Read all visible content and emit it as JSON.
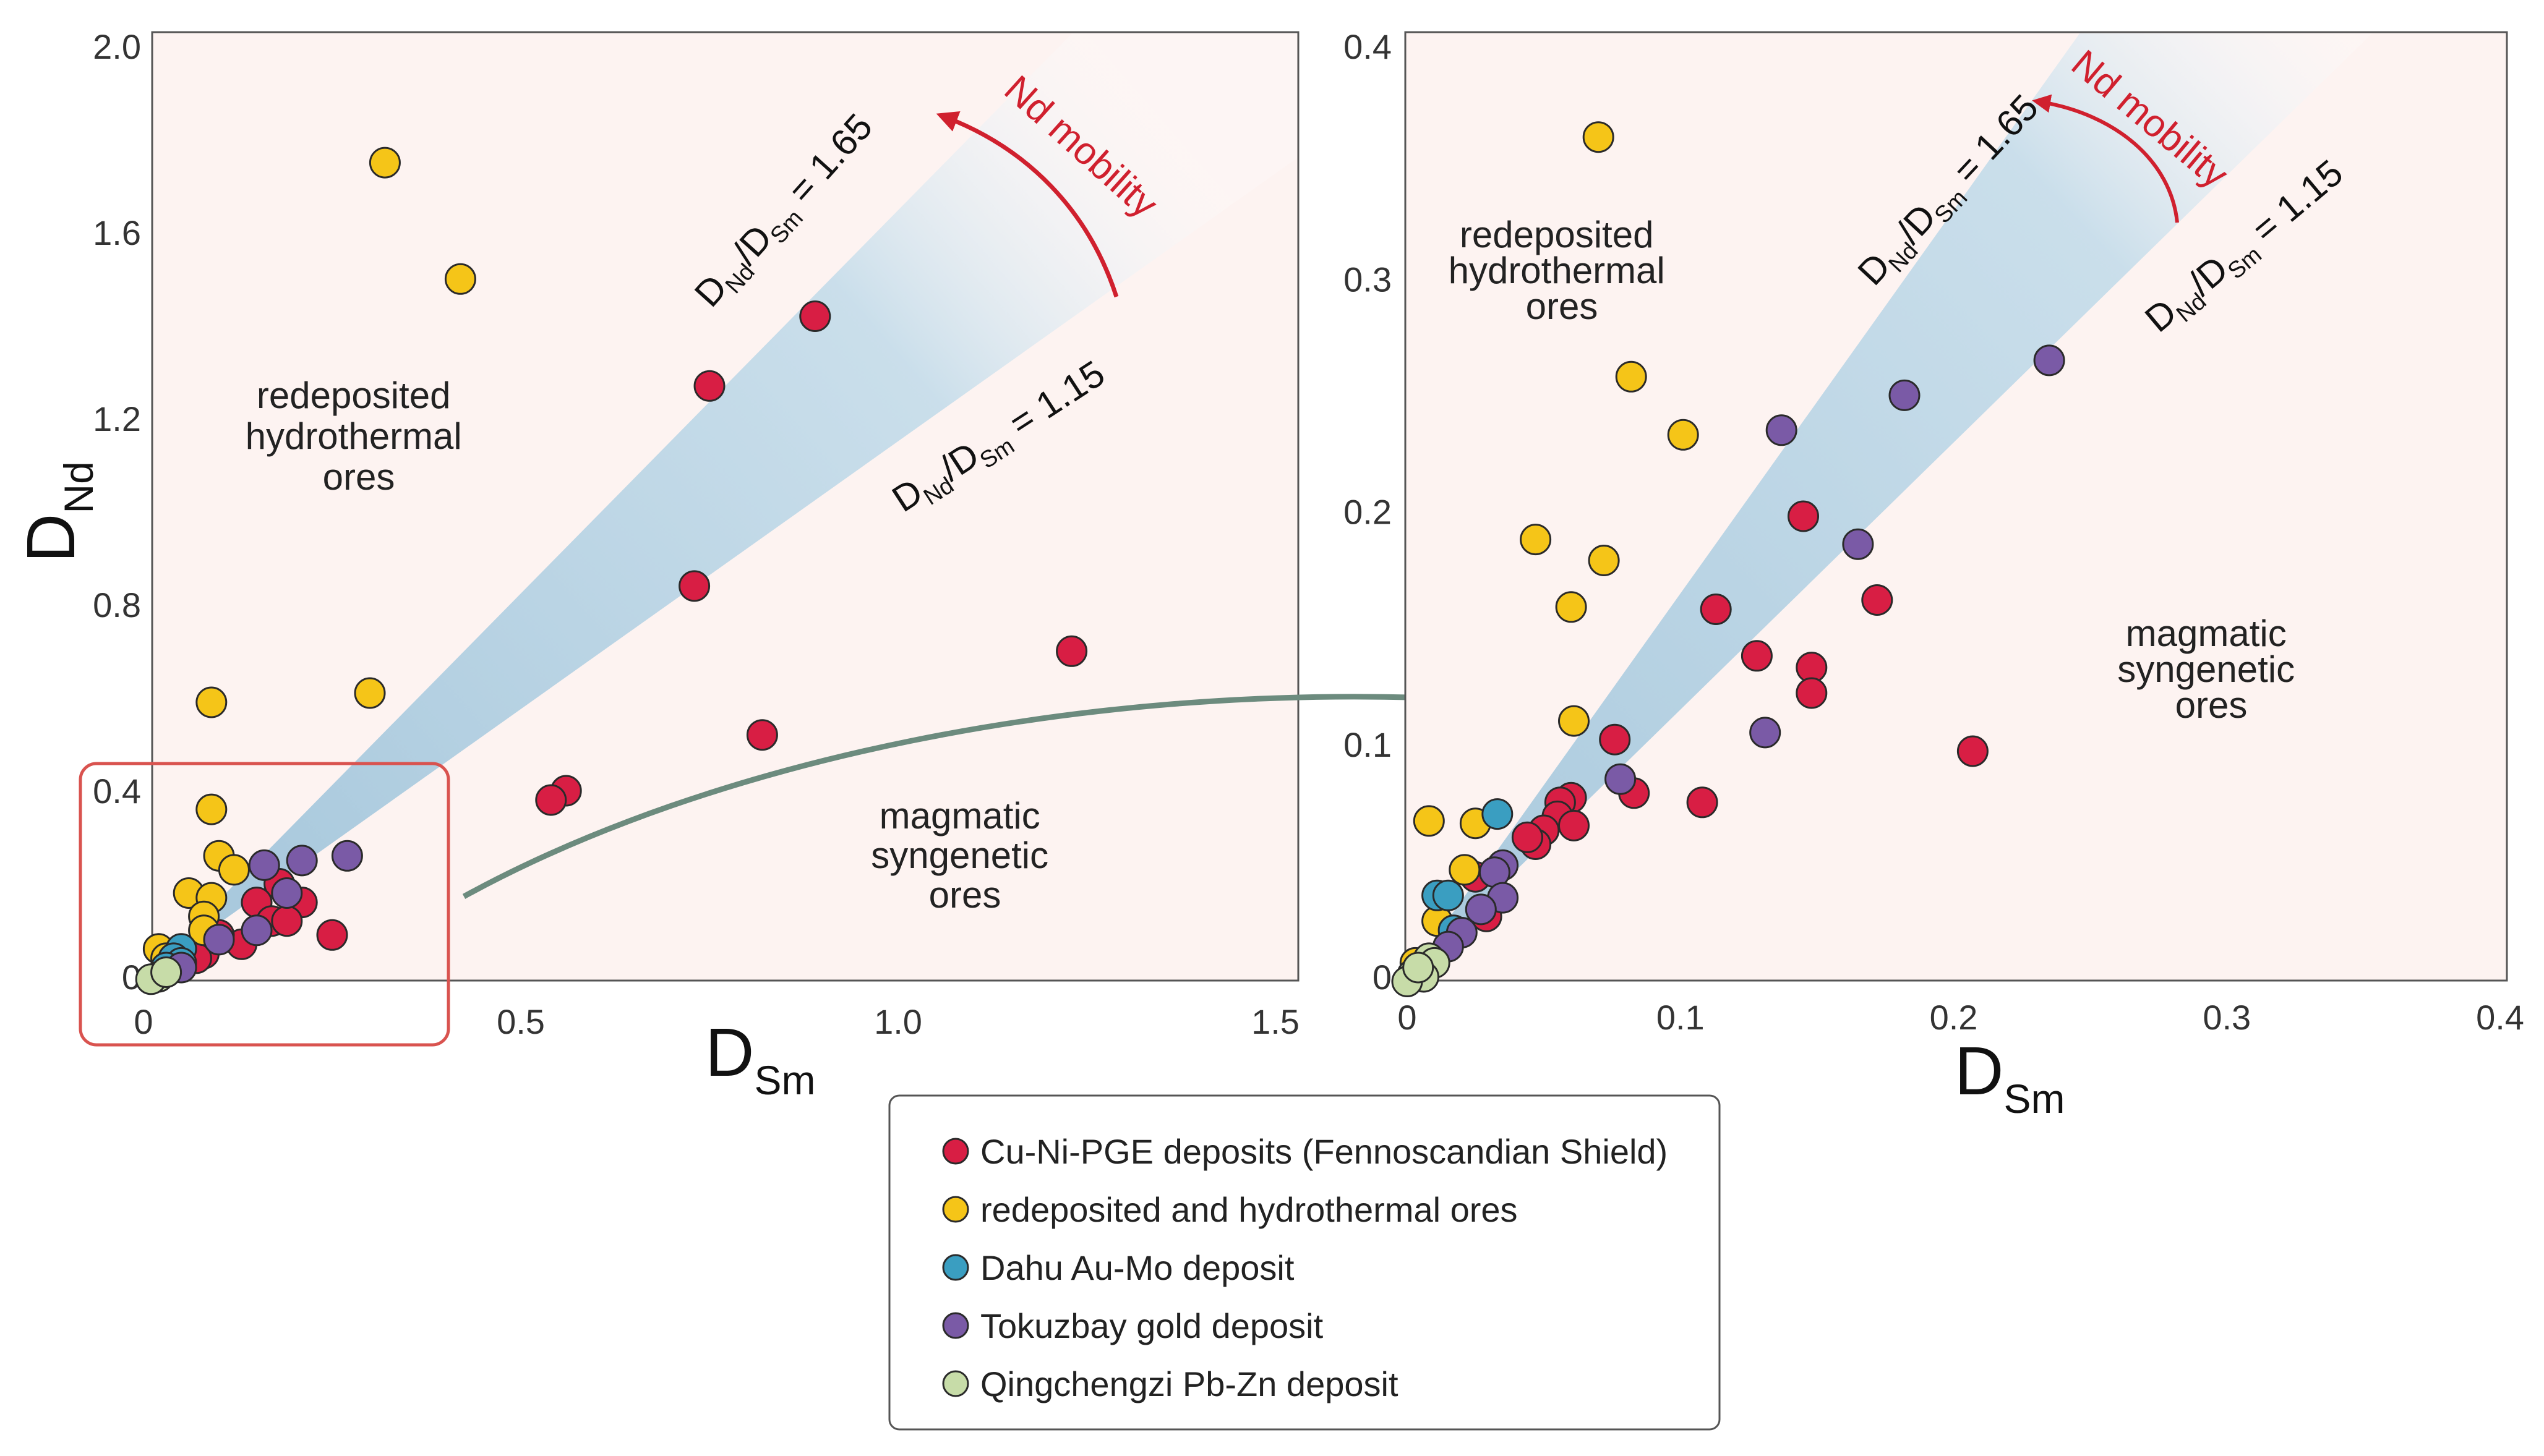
{
  "colors": {
    "Cu-Ni-PGE": "#d81e44",
    "redeposited": "#f5c518",
    "Dahu": "#3a9ec1",
    "Tokuzbay": "#7a5aa6",
    "Qingchengzi": "#c7dca8",
    "plot_bg": "#fdf3f1",
    "band": "#b9d5e6",
    "zoom_box": "#d9534f",
    "arrow": "#6c8b7e",
    "mobility": "#d0202e"
  },
  "shared": {
    "xlabel_main": "D",
    "xlabel_sub": "Sm",
    "ylabel_main": "D",
    "ylabel_sub": "Nd",
    "band_upper_label": [
      "D",
      "Nd",
      "/D",
      "Sm",
      " = 1.65"
    ],
    "band_lower_label": [
      "D",
      "Nd",
      "/D",
      "Sm",
      " = 1.15"
    ],
    "mobility_label": "Nd mobility",
    "region_hydro": [
      "redeposited",
      "hydrothermal",
      "ores"
    ],
    "region_magmatic": [
      "magmatic",
      "syngenetic",
      "ores"
    ]
  },
  "chart_data": [
    {
      "type": "scatter",
      "panel": "left",
      "xlabel": "DSm",
      "ylabel": "DNd",
      "xlim": [
        0,
        1.5
      ],
      "ylim": [
        0,
        2.0
      ],
      "xticks": [
        0,
        0.5,
        1.0,
        1.5
      ],
      "xtick_labels": [
        "0",
        "0.5",
        "1.0",
        "1.5"
      ],
      "yticks": [
        0,
        0.4,
        0.8,
        1.2,
        1.6,
        2.0
      ],
      "ytick_labels": [
        "0",
        "0.4",
        "0.8",
        "1.2",
        "1.6",
        "2.0"
      ],
      "band_ratios": [
        1.15,
        1.65
      ],
      "series": [
        {
          "name": "Cu-Ni-PGE deposits (Fennoscandian Shield)",
          "key": "Cu-Ni-PGE",
          "points": [
            [
              0.89,
              1.42
            ],
            [
              0.75,
              1.27
            ],
            [
              0.73,
              0.84
            ],
            [
              1.23,
              0.7
            ],
            [
              0.82,
              0.52
            ],
            [
              0.56,
              0.4
            ],
            [
              0.54,
              0.38
            ],
            [
              0.25,
              0.09
            ],
            [
              0.21,
              0.16
            ],
            [
              0.18,
              0.2
            ],
            [
              0.15,
              0.16
            ],
            [
              0.17,
              0.12
            ],
            [
              0.19,
              0.12
            ],
            [
              0.13,
              0.07
            ],
            [
              0.1,
              0.09
            ],
            [
              0.08,
              0.05
            ],
            [
              0.07,
              0.04
            ]
          ]
        },
        {
          "name": "redeposited and hydrothermal ores",
          "key": "redeposited",
          "points": [
            [
              0.32,
              1.75
            ],
            [
              0.42,
              1.5
            ],
            [
              0.3,
              0.61
            ],
            [
              0.09,
              0.59
            ],
            [
              0.09,
              0.36
            ],
            [
              0.1,
              0.26
            ],
            [
              0.12,
              0.23
            ],
            [
              0.06,
              0.18
            ],
            [
              0.09,
              0.17
            ],
            [
              0.08,
              0.13
            ],
            [
              0.08,
              0.1
            ],
            [
              0.02,
              0.06
            ],
            [
              0.03,
              0.04
            ]
          ]
        },
        {
          "name": "Dahu Au-Mo deposit",
          "key": "Dahu",
          "points": [
            [
              0.05,
              0.06
            ],
            [
              0.04,
              0.04
            ],
            [
              0.05,
              0.03
            ],
            [
              0.03,
              0.02
            ]
          ]
        },
        {
          "name": "Tokuzbay gold deposit",
          "key": "Tokuzbay",
          "points": [
            [
              0.27,
              0.26
            ],
            [
              0.21,
              0.25
            ],
            [
              0.16,
              0.24
            ],
            [
              0.19,
              0.18
            ],
            [
              0.15,
              0.1
            ],
            [
              0.1,
              0.08
            ],
            [
              0.05,
              0.02
            ]
          ]
        },
        {
          "name": "Qingchengzi Pb-Zn deposit",
          "key": "Qingchengzi",
          "points": [
            [
              0.02,
              0.0
            ],
            [
              0.01,
              -0.005
            ],
            [
              0.03,
              0.01
            ]
          ]
        }
      ]
    },
    {
      "type": "scatter",
      "panel": "right",
      "xlabel": "DSm",
      "ylabel": "DNd",
      "xlim": [
        0,
        0.4
      ],
      "ylim": [
        0,
        0.4
      ],
      "xticks": [
        0,
        0.1,
        0.2,
        0.3,
        0.4
      ],
      "xtick_labels": [
        "0",
        "0.1",
        "0.2",
        "0.3",
        "0.4"
      ],
      "yticks": [
        0,
        0.1,
        0.2,
        0.3,
        0.4
      ],
      "ytick_labels": [
        "0",
        "0.1",
        "0.2",
        "0.3",
        "0.4"
      ],
      "band_ratios": [
        1.15,
        1.65
      ],
      "series": [
        {
          "name": "Cu-Ni-PGE deposits (Fennoscandian Shield)",
          "key": "Cu-Ni-PGE",
          "points": [
            [
              0.145,
              0.198
            ],
            [
              0.113,
              0.158
            ],
            [
              0.172,
              0.162
            ],
            [
              0.128,
              0.138
            ],
            [
              0.148,
              0.133
            ],
            [
              0.148,
              0.122
            ],
            [
              0.207,
              0.097
            ],
            [
              0.076,
              0.102
            ],
            [
              0.083,
              0.079
            ],
            [
              0.108,
              0.075
            ],
            [
              0.06,
              0.077
            ],
            [
              0.056,
              0.075
            ],
            [
              0.055,
              0.069
            ],
            [
              0.05,
              0.063
            ],
            [
              0.061,
              0.065
            ],
            [
              0.047,
              0.057
            ],
            [
              0.044,
              0.06
            ],
            [
              0.025,
              0.043
            ],
            [
              0.029,
              0.026
            ]
          ]
        },
        {
          "name": "redeposited and hydrothermal ores",
          "key": "redeposited",
          "points": [
            [
              0.07,
              0.361
            ],
            [
              0.082,
              0.258
            ],
            [
              0.101,
              0.233
            ],
            [
              0.047,
              0.188
            ],
            [
              0.072,
              0.179
            ],
            [
              0.06,
              0.159
            ],
            [
              0.061,
              0.11
            ],
            [
              0.008,
              0.067
            ],
            [
              0.025,
              0.066
            ],
            [
              0.021,
              0.046
            ],
            [
              0.011,
              0.024
            ],
            [
              0.003,
              0.006
            ],
            [
              0.005,
              0.003
            ]
          ]
        },
        {
          "name": "Dahu Au-Mo deposit",
          "key": "Dahu",
          "points": [
            [
              0.033,
              0.07
            ],
            [
              0.011,
              0.035
            ],
            [
              0.015,
              0.035
            ],
            [
              0.017,
              0.02
            ]
          ]
        },
        {
          "name": "Tokuzbay gold deposit",
          "key": "Tokuzbay",
          "points": [
            [
              0.235,
              0.265
            ],
            [
              0.182,
              0.25
            ],
            [
              0.137,
              0.235
            ],
            [
              0.165,
              0.186
            ],
            [
              0.131,
              0.105
            ],
            [
              0.078,
              0.085
            ],
            [
              0.035,
              0.048
            ],
            [
              0.032,
              0.045
            ],
            [
              0.035,
              0.034
            ],
            [
              0.027,
              0.029
            ],
            [
              0.02,
              0.019
            ],
            [
              0.015,
              0.013
            ]
          ]
        },
        {
          "name": "Qingchengzi Pb-Zn deposit",
          "key": "Qingchengzi",
          "points": [
            [
              0.008,
              0.008
            ],
            [
              0.005,
              0.003
            ],
            [
              0.01,
              0.006
            ],
            [
              0.002,
              0.001
            ],
            [
              0.006,
              0.0
            ],
            [
              0.0,
              -0.002
            ],
            [
              0.004,
              0.004
            ]
          ]
        }
      ]
    }
  ],
  "legend": [
    {
      "key": "Cu-Ni-PGE",
      "label": "Cu-Ni-PGE deposits (Fennoscandian Shield)"
    },
    {
      "key": "redeposited",
      "label": "redeposited and hydrothermal ores"
    },
    {
      "key": "Dahu",
      "label": "Dahu Au-Mo deposit"
    },
    {
      "key": "Tokuzbay",
      "label": "Tokuzbay gold deposit"
    },
    {
      "key": "Qingchengzi",
      "label": "Qingchengzi Pb-Zn deposit"
    }
  ]
}
